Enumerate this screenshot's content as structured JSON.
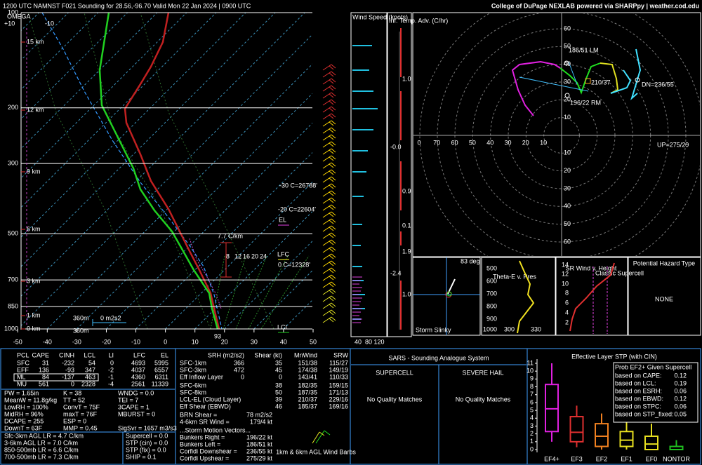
{
  "header": {
    "title": "1200 UTC NAMNST F021 Sounding for 28.56,-96.70 Valid  Mon 22 Jan 2024 | 0900 UTC",
    "credit": "College of DuPage NEXLAB powered via SHARPpy | weather.cod.edu"
  },
  "skewt": {
    "plim": [
      100,
      1000
    ],
    "pressure_ticks": [
      100,
      200,
      300,
      500,
      700,
      850,
      1000
    ],
    "tlim": [
      -56,
      50
    ],
    "temp_ticks": [
      -50,
      -40,
      -30,
      -20,
      -10,
      0,
      10,
      20,
      30,
      40,
      50
    ],
    "omega": {
      "title": "OMEGA",
      "plus": "+10",
      "minus": "-10"
    },
    "heights": [
      "15 km",
      "12 km",
      "9 km",
      "6 km",
      "3 km",
      "1 km",
      "0 km"
    ],
    "annotations": {
      "m30": "-30 C=26788'",
      "m20": "-20 C=22604'",
      "el": "EL",
      "lfc": "LFC",
      "lcl": "LCL",
      "zero": "0 C=12328'",
      "lapse": "7.7 C/km",
      "eff_top": "360m",
      "srh": "0 m2s2",
      "eff_bot": "360m",
      "sfc": "93"
    },
    "mixing_ratio": [
      "8",
      "12",
      "16",
      "20",
      "24"
    ]
  },
  "wind_speed": {
    "title": "Wind Speed (knots)",
    "ticks": [
      "40",
      "80",
      "120"
    ]
  },
  "temp_adv": {
    "title": "Inf. Temp. Adv. (C/hr)",
    "values": [
      "1.0",
      "-0.0",
      "0.9",
      "0.1",
      "1.9",
      "-2.4",
      "1.0"
    ]
  },
  "hodograph": {
    "rings": [
      10,
      20,
      30,
      40,
      50,
      60
    ],
    "x_labels": [
      "0",
      "70",
      "60",
      "50",
      "40",
      "30",
      "20",
      "10"
    ],
    "labels": {
      "lm": "186/51 LM",
      "mean": "210/37",
      "rm": "196/22 RM",
      "dn": "DN=236/55",
      "up": "UP=275/29"
    }
  },
  "slinky": {
    "angle": "83 deg",
    "title": "Storm Slinky"
  },
  "theta_e": {
    "title": "Theta-E v. Pres",
    "pressures": [
      "500",
      "600",
      "700",
      "800",
      "900",
      "1000"
    ],
    "temps": [
      "300",
      "330"
    ]
  },
  "sr_wind": {
    "title": "SR Wind v. Height",
    "class": "Classic Supercell",
    "heights": [
      "14",
      "12",
      "10",
      "8",
      "6",
      "4",
      "2"
    ]
  },
  "hazard": {
    "title": "Potential Hazard Type",
    "value": "NONE"
  },
  "thermo": {
    "headers": [
      "PCL",
      "CAPE",
      "CINH",
      "LCL",
      "LI",
      "LFC",
      "EL"
    ],
    "rows": [
      [
        "SFC",
        "31",
        "-232",
        "54",
        "0",
        "4693",
        "5995"
      ],
      [
        "EFF",
        "136",
        "-93",
        "347",
        "-2",
        "4037",
        "6557"
      ],
      [
        "ML",
        "84",
        "-137",
        "463",
        "-1",
        "4360",
        "6311"
      ],
      [
        "MU",
        "561",
        "0",
        "2328",
        "-4",
        "2561",
        "11339"
      ]
    ],
    "indices": [
      [
        "PW = 1.65in",
        "K = 38",
        "WNDG = 0.0"
      ],
      [
        "MeanW = 11.8g/kg",
        "TT = 52",
        "TEI = 7"
      ],
      [
        "LowRH = 100%",
        "ConvT = 75F",
        "3CAPE = 1"
      ],
      [
        "MidRH = 96%",
        "maxT = 76F",
        "MBURST = 0"
      ],
      [
        "DCAPE = 255",
        "ESP = 0"
      ],
      [
        "DownT = 63F",
        "MMP = 0.45",
        "SigSvr = 1657 m3/s3"
      ]
    ],
    "lapse_rates": [
      "Sfc-3km AGL LR = 4.7 C/km",
      "3-6km AGL LR = 7.0 C/km",
      "850-500mb LR = 6.6 C/km",
      "700-500mb LR = 7.3 C/km"
    ],
    "severe": [
      "Supercell = 0.0",
      "STP (cin) = 0.0",
      "STP (fix) = 0.0",
      "SHIP = 0.1"
    ]
  },
  "kinematic": {
    "headers": [
      "SRH (m2/s2)",
      "Shear (kt)",
      "MnWind",
      "SRW"
    ],
    "rows": [
      {
        "label": "SFC-1km",
        "srh": "366",
        "shear": "35",
        "mnwind": "151/38",
        "srw": "115/27"
      },
      {
        "label": "SFC-3km",
        "srh": "472",
        "shear": "45",
        "mnwind": "174/38",
        "srw": "149/19"
      },
      {
        "label": "Eff Inflow Layer",
        "srh": "0",
        "shear": "0",
        "mnwind": "143/41",
        "srw": "110/33"
      },
      {
        "label": "SFC-6km",
        "shear": "38",
        "mnwind": "182/35",
        "srw": "159/15"
      },
      {
        "label": "SFC-8km",
        "shear": "50",
        "mnwind": "187/35",
        "srw": "171/13"
      },
      {
        "label": "LCL-EL (Cloud Layer)",
        "shear": "39",
        "mnwind": "210/37",
        "srw": "229/16"
      },
      {
        "label": "Eff Shear (EBWD)",
        "shear": "46",
        "mnwind": "185/37",
        "srw": "169/16"
      }
    ],
    "extra": [
      {
        "label": "BRN Shear =",
        "value": "78 m2/s2"
      },
      {
        "label": "4-6km SR Wind =",
        "value": "179/4 kt"
      }
    ],
    "motion_title": "...Storm Motion Vectors...",
    "motion": [
      {
        "label": "Bunkers Right =",
        "value": "196/22 kt"
      },
      {
        "label": "Bunkers Left =",
        "value": "186/51 kt"
      },
      {
        "label": "Corfidi Downshear =",
        "value": "236/55 kt"
      },
      {
        "label": "Corfidi Upshear =",
        "value": "275/29 kt"
      }
    ],
    "barb_note": "1km & 6km AGL Wind Barbs"
  },
  "sars": {
    "title": "SARS - Sounding Analogue System",
    "supercell": "SUPERCELL",
    "hail": "SEVERE HAIL",
    "supercell_result": "No Quality Matches",
    "hail_result": "No Quality Matches"
  },
  "stp": {
    "title": "Effective Layer STP (with CIN)",
    "ylim": [
      0,
      11
    ],
    "yticks": [
      0,
      1,
      2,
      3,
      4,
      5,
      6,
      7,
      8,
      9,
      10,
      11
    ],
    "categories": [
      "EF4+",
      "EF3",
      "EF2",
      "EF1",
      "EF0",
      "NONTOR"
    ],
    "colors": [
      "#e020e0",
      "#e03030",
      "#f08020",
      "#e8e020",
      "#e8e020",
      "#20c020"
    ],
    "boxes": [
      {
        "low": 1.0,
        "q1": 2.3,
        "median": 5.2,
        "q3": 8.3,
        "high": 11
      },
      {
        "low": 0.3,
        "q1": 1.0,
        "median": 2.2,
        "q3": 4.2,
        "high": 5.6
      },
      {
        "low": 0,
        "q1": 0.4,
        "median": 1.7,
        "q3": 3.3,
        "high": 4.6
      },
      {
        "low": 0,
        "q1": 0.4,
        "median": 1.2,
        "q3": 2.3,
        "high": 3.7
      },
      {
        "low": 0,
        "q1": 0,
        "median": 0.7,
        "q3": 1.7,
        "high": 3.3
      },
      {
        "low": 0,
        "q1": 0,
        "median": 0,
        "q3": 0.4,
        "high": 1.2
      }
    ],
    "prob_title": "Prob EF2+ Given Supercell",
    "probs": [
      {
        "label": "based on CAPE:",
        "value": "0.12"
      },
      {
        "label": "based on LCL:",
        "value": "0.19"
      },
      {
        "label": "based on ESRH:",
        "value": "0.06"
      },
      {
        "label": "based on EBWD:",
        "value": "0.12"
      },
      {
        "label": "based on STPC:",
        "value": "0.06"
      },
      {
        "label": "based on STP_fixed:",
        "value": "0.05"
      }
    ]
  }
}
